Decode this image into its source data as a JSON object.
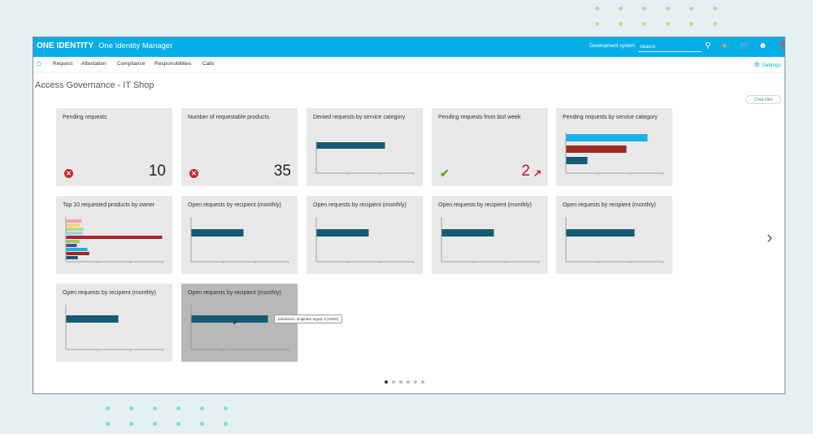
{
  "app": {
    "brand_logo": "ONE IDENTITY",
    "brand_product": "One Identity Manager",
    "system_label": "Development system",
    "search_placeholder": "Search"
  },
  "topbar_icons": [
    "search-icon",
    "bell-icon",
    "cart-icon",
    "user-icon",
    "help-icon"
  ],
  "nav": {
    "items": [
      "Request",
      "Attestation",
      "Compliance",
      "Responsibilities",
      "Calls"
    ],
    "settings": "Settings"
  },
  "page": {
    "title": "Access Governance - IT Shop",
    "chart_filter": "Chart filter"
  },
  "colors": {
    "accent": "#04aee6",
    "bar_dark": "#145a72",
    "bar_red": "#9c2a20",
    "bar_blue": "#1ab1e6",
    "error": "#c9252f",
    "ok": "#5da92d"
  },
  "tiles": [
    {
      "title": "Pending requests",
      "value": "10",
      "status": "error"
    },
    {
      "title": "Number of requestable products",
      "value": "35",
      "status": "error"
    },
    {
      "title": "Denied requests by service category"
    },
    {
      "title": "Pending requests from last week",
      "value": "2",
      "status": "ok"
    },
    {
      "title": "Pending requests by service category"
    },
    {
      "title": "Top 10 requested products by owner"
    },
    {
      "title": "Open requests by recipient (monthly)"
    },
    {
      "title": "Open requests by recipient (monthly)"
    },
    {
      "title": "Open requests by recipient (monthly)"
    },
    {
      "title": "Open requests by recipient (monthly)"
    },
    {
      "title": "Open requests by recipient (monthly)"
    },
    {
      "title": "Open requests by recipient (monthly)"
    }
  ],
  "tooltip": "Johansson, Engineer Ingvar 3 (100%)",
  "pager": {
    "count": 6,
    "active": 0
  },
  "chart_data": [
    {
      "type": "bar",
      "title": "Denied requests by service category",
      "orientation": "horizontal",
      "values": [
        1
      ],
      "colors": [
        "#145a72"
      ]
    },
    {
      "type": "bar",
      "title": "Pending requests by service category",
      "orientation": "horizontal",
      "values": [
        1.0,
        0.74,
        0.26
      ],
      "colors": [
        "#1ab1e6",
        "#9c2a20",
        "#145a72"
      ]
    },
    {
      "type": "bar",
      "title": "Top 10 requested products by owner",
      "orientation": "horizontal",
      "values": [
        0.16,
        0.14,
        0.18,
        0.17,
        1.0,
        0.14,
        0.11,
        0.22,
        0.24,
        0.12
      ],
      "colors": [
        "#f0a0b0",
        "#f5d37a",
        "#b6d88a",
        "#9fd3e8",
        "#a9232b",
        "#9dd05a",
        "#4b4ba8",
        "#1ab1e6",
        "#9c2a20",
        "#145a72"
      ]
    },
    {
      "type": "bar",
      "title": "Open requests by recipient (monthly)",
      "orientation": "horizontal",
      "values": [
        1
      ],
      "colors": [
        "#145a72"
      ]
    },
    {
      "type": "bar",
      "title": "Open requests by recipient (monthly)",
      "orientation": "horizontal",
      "values": [
        1
      ],
      "colors": [
        "#145a72"
      ]
    },
    {
      "type": "bar",
      "title": "Open requests by recipient (monthly)",
      "orientation": "horizontal",
      "values": [
        1
      ],
      "colors": [
        "#145a72"
      ]
    },
    {
      "type": "bar",
      "title": "Open requests by recipient (monthly)",
      "orientation": "horizontal",
      "values": [
        1
      ],
      "colors": [
        "#145a72"
      ]
    },
    {
      "type": "bar",
      "title": "Open requests by recipient (monthly)",
      "orientation": "horizontal",
      "values": [
        1
      ],
      "colors": [
        "#145a72"
      ]
    },
    {
      "type": "bar",
      "title": "Open requests by recipient (monthly)",
      "orientation": "horizontal",
      "values": [
        1
      ],
      "colors": [
        "#145a72"
      ]
    }
  ]
}
